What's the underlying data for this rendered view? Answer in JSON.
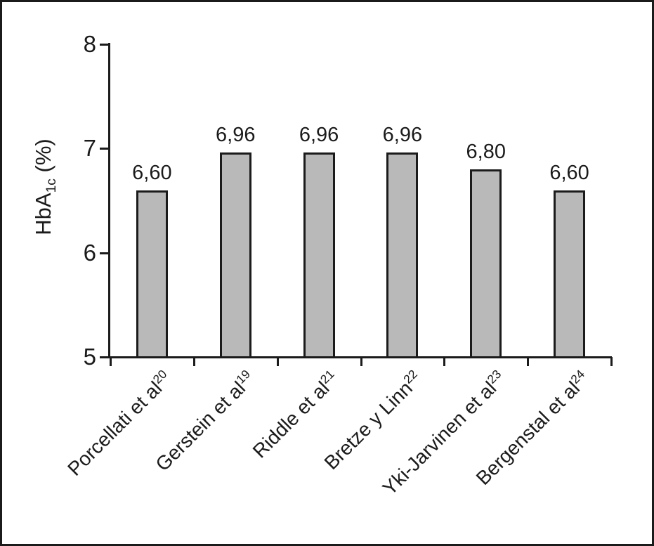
{
  "figure": {
    "ink_color": "#1b1b1b",
    "background_color": "#ffffff"
  },
  "chart_data": {
    "type": "bar",
    "title": "",
    "xlabel": "",
    "ylabel_parts": {
      "base": "HbA",
      "sub": "1c",
      "suffix": " (%)"
    },
    "ylim": [
      5,
      8
    ],
    "yticks": [
      5,
      6,
      7,
      8
    ],
    "grid": false,
    "legend": false,
    "bar_color": "#b9b9b9",
    "bar_border_color": "#1b1b1b",
    "categories": [
      {
        "name": "Porcellati et al",
        "sup": "20"
      },
      {
        "name": "Gerstein et al",
        "sup": "19"
      },
      {
        "name": "Riddle et al",
        "sup": "21"
      },
      {
        "name": "Bretze y Linn",
        "sup": "22"
      },
      {
        "name": "Yki-Jarvinen et al",
        "sup": "23"
      },
      {
        "name": "Bergenstal et al",
        "sup": "24"
      }
    ],
    "values": [
      6.6,
      6.96,
      6.96,
      6.96,
      6.8,
      6.6
    ],
    "value_labels": [
      "6,60",
      "6,96",
      "6,96",
      "6,96",
      "6,80",
      "6,60"
    ]
  }
}
